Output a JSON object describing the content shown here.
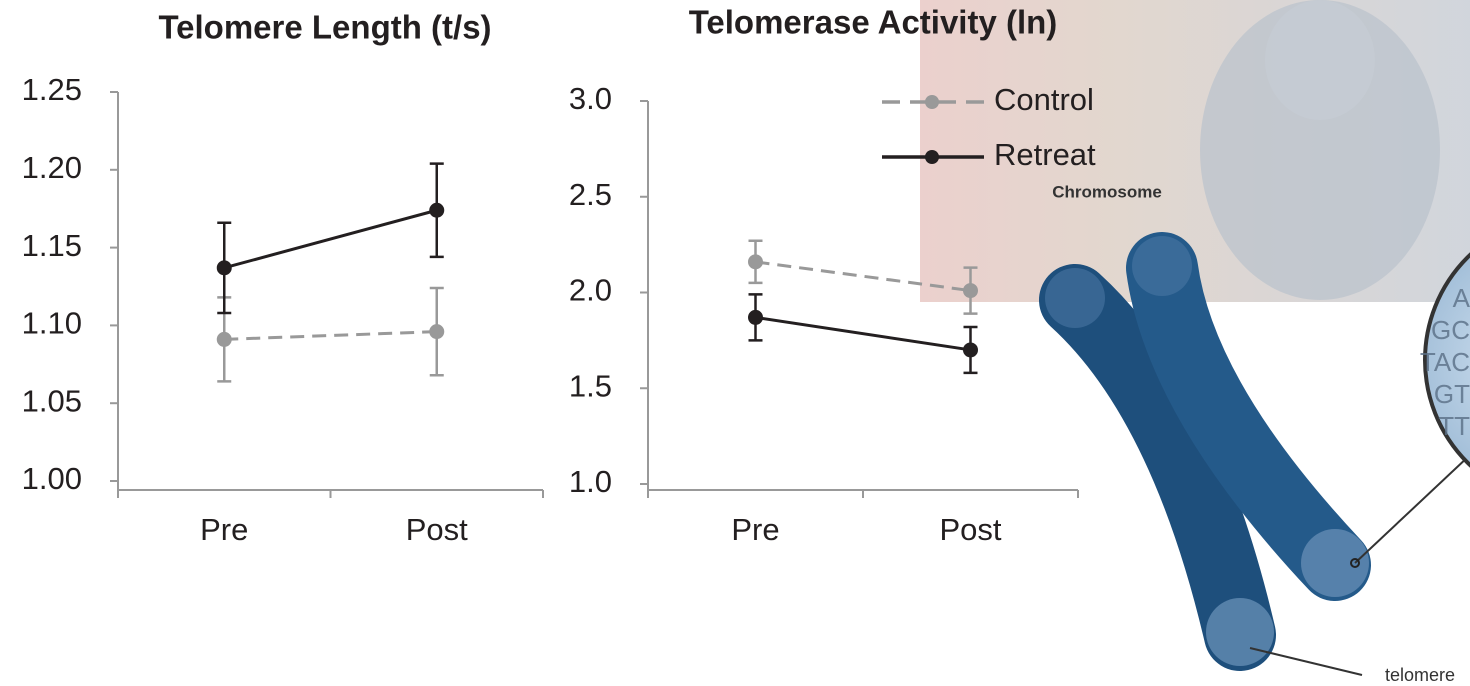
{
  "chart_data": [
    {
      "type": "line",
      "title": "Telomere Length (t/s)",
      "categories": [
        "Pre",
        "Post"
      ],
      "ylim": [
        1.0,
        1.25
      ],
      "yticks": [
        {
          "value": 1.0,
          "label": "1.00"
        },
        {
          "value": 1.05,
          "label": "1.05"
        },
        {
          "value": 1.1,
          "label": "1.10"
        },
        {
          "value": 1.15,
          "label": "1.15"
        },
        {
          "value": 1.2,
          "label": "1.20"
        },
        {
          "value": 1.25,
          "label": "1.25"
        }
      ],
      "series": [
        {
          "color": "#999999",
          "dashed": true,
          "values": [
            1.091,
            1.096
          ],
          "errors": [
            0.027,
            0.028
          ]
        },
        {
          "color": "#231f20",
          "dashed": false,
          "values": [
            1.137,
            1.174
          ],
          "errors": [
            0.029,
            0.03
          ]
        }
      ]
    },
    {
      "type": "line",
      "title": "Telomerase Activity (ln)",
      "categories": [
        "Pre",
        "Post"
      ],
      "ylim": [
        1.0,
        3.0
      ],
      "yticks": [
        {
          "value": 1.0,
          "label": "1.0"
        },
        {
          "value": 1.5,
          "label": "1.5"
        },
        {
          "value": 2.0,
          "label": "2.0"
        },
        {
          "value": 2.5,
          "label": "2.5"
        },
        {
          "value": 3.0,
          "label": "3.0"
        }
      ],
      "legend": true,
      "series": [
        {
          "name": "Control",
          "color": "#999999",
          "dashed": true,
          "values": [
            2.16,
            2.01
          ],
          "errors": [
            0.11,
            0.12
          ]
        },
        {
          "name": "Retreat",
          "color": "#231f20",
          "dashed": false,
          "values": [
            1.87,
            1.7
          ],
          "errors": [
            0.12,
            0.12
          ]
        }
      ]
    }
  ],
  "illustration": {
    "label": "Chromosome",
    "pointer_label": "telomere",
    "sequence": [
      "A",
      "GC",
      "TAC",
      "GT",
      "TT"
    ]
  }
}
